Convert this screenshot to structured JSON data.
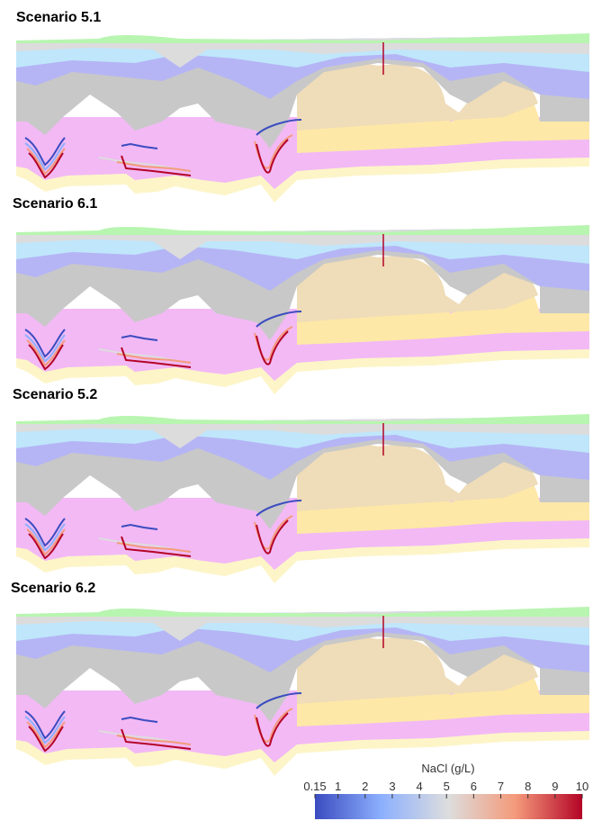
{
  "panels": [
    {
      "title": "Scenario 5.1"
    },
    {
      "title": "Scenario 6.1"
    },
    {
      "title": "Scenario 5.2"
    },
    {
      "title": "Scenario 6.2"
    }
  ],
  "colorbar": {
    "label": "NaCl (g/L)",
    "range": [
      0.15,
      10
    ],
    "ticks": [
      0.15,
      1,
      2,
      3,
      4,
      5,
      6,
      7,
      8,
      9,
      10
    ]
  }
}
